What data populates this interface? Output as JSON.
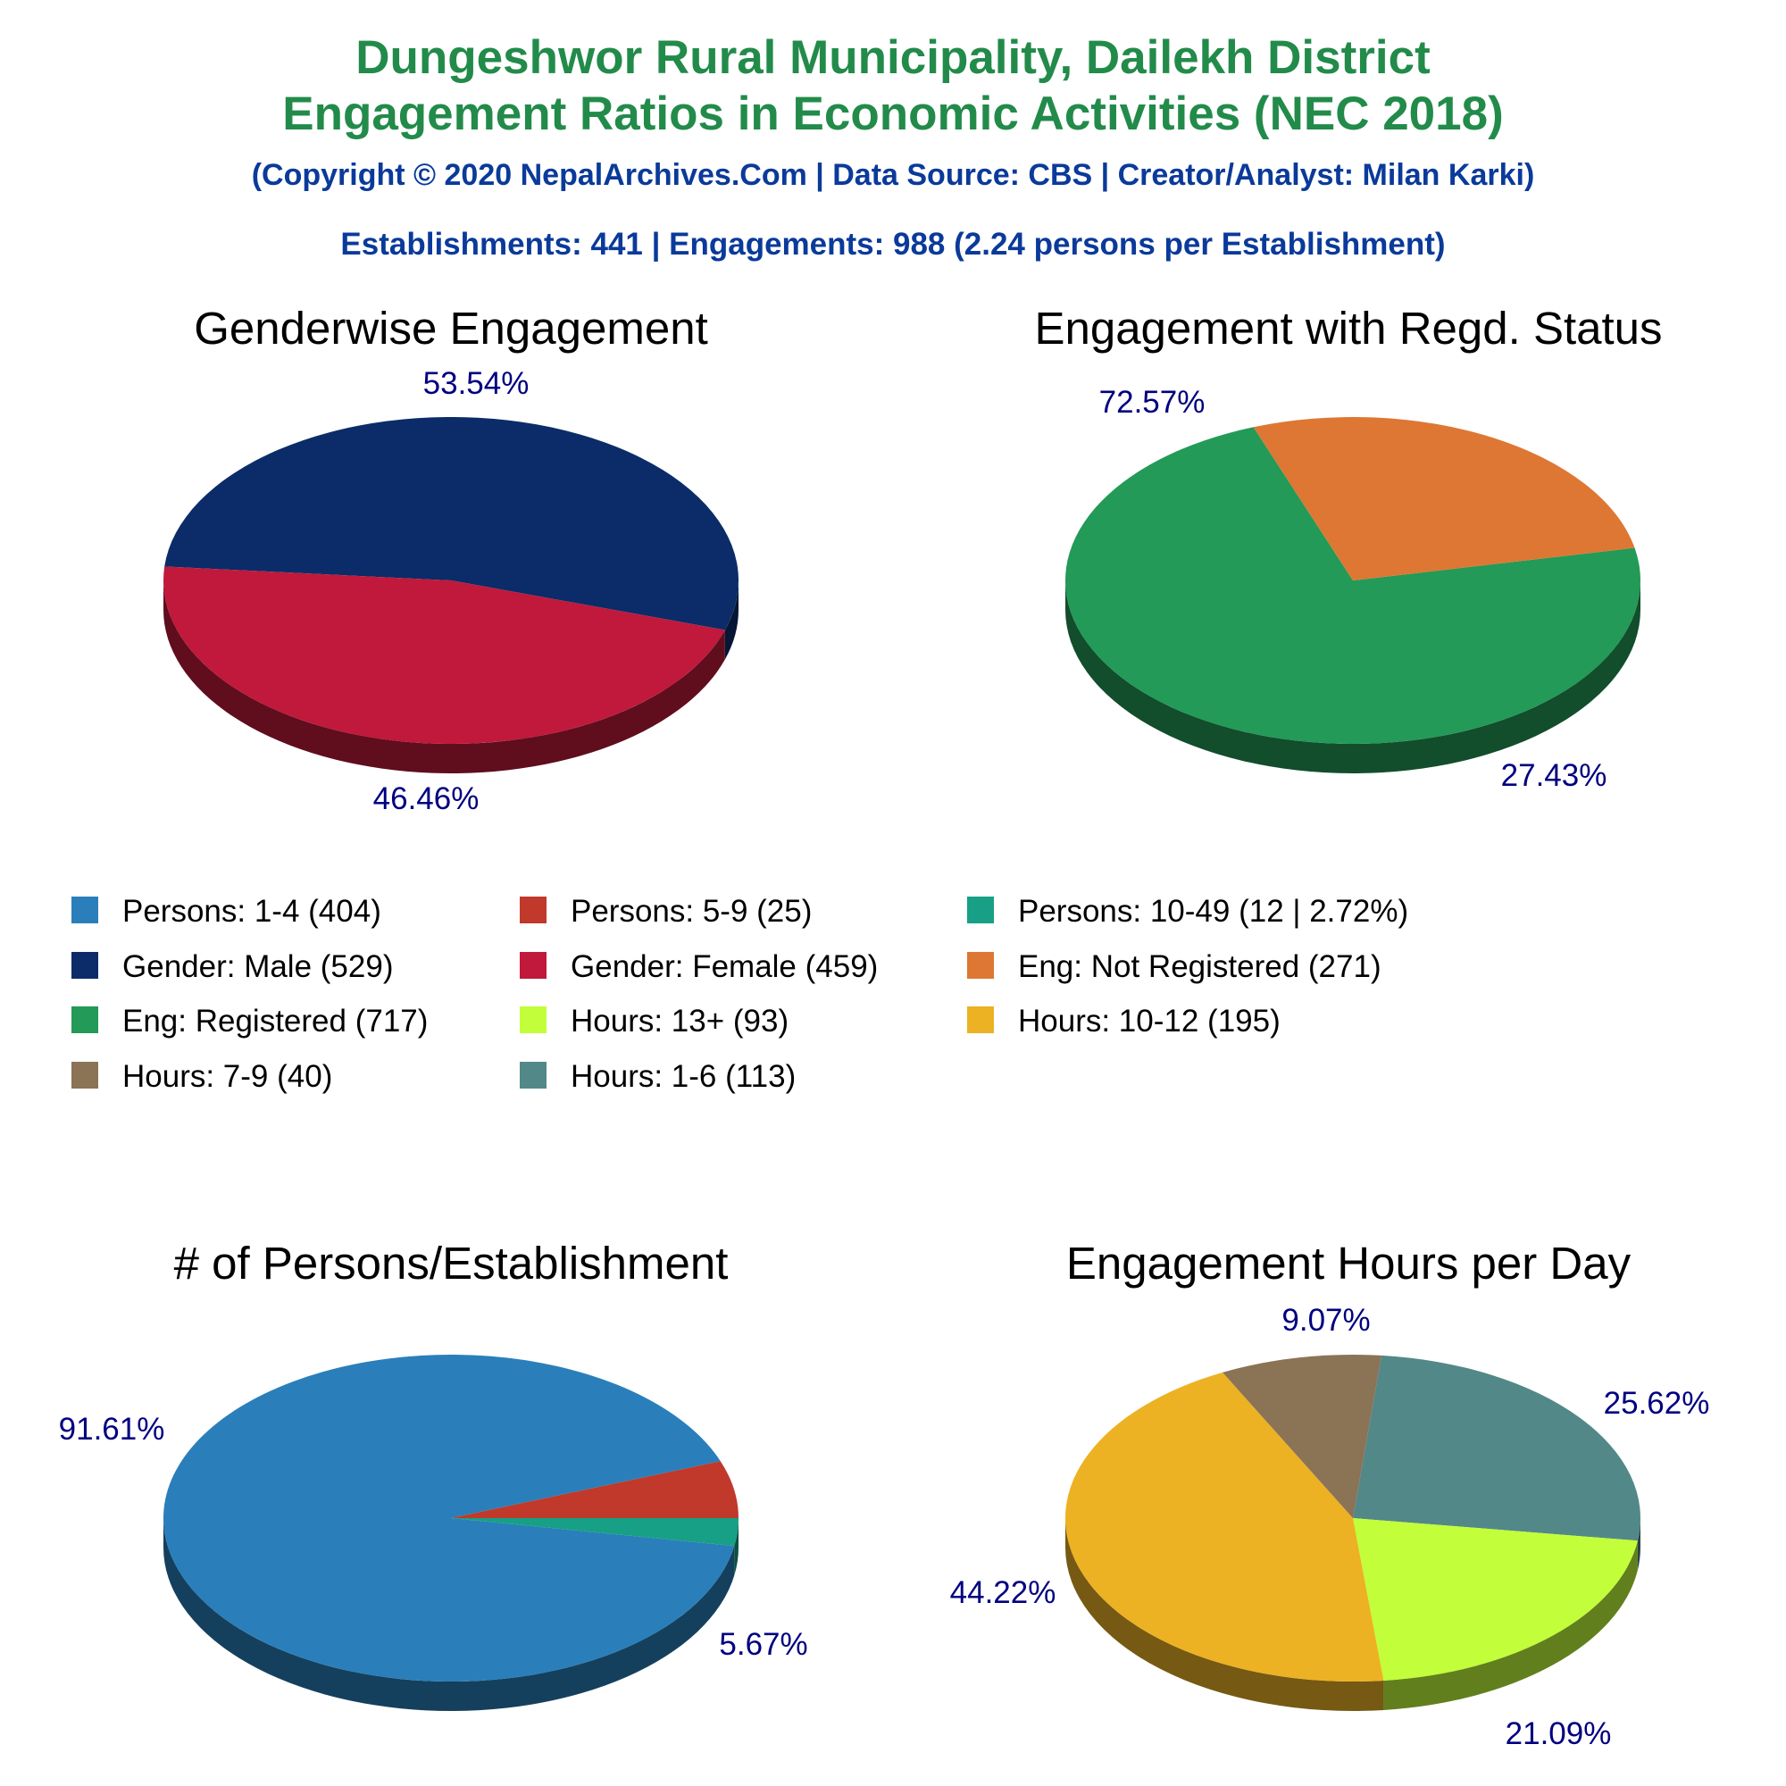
{
  "header": {
    "title_line1": "Dungeshwor Rural Municipality, Dailekh District",
    "title_line2": "Engagement Ratios in Economic Activities (NEC 2018)",
    "subtitle": "(Copyright © 2020 NepalArchives.Com | Data Source: CBS | Creator/Analyst: Milan Karki)",
    "stats": "Establishments: 441 | Engagements: 988 (2.24 persons per Establishment)"
  },
  "legend": [
    {
      "label": "Persons: 1-4 (404)",
      "color": "#2a7fba"
    },
    {
      "label": "Persons: 5-9 (25)",
      "color": "#c0392b"
    },
    {
      "label": "Persons: 10-49 (12 | 2.72%)",
      "color": "#17a085"
    },
    {
      "label": "Gender: Male (529)",
      "color": "#0b2c68"
    },
    {
      "label": "Gender: Female (459)",
      "color": "#c0193b"
    },
    {
      "label": "Eng: Not Registered (271)",
      "color": "#dd7733"
    },
    {
      "label": "Eng: Registered (717)",
      "color": "#239a57"
    },
    {
      "label": "Hours: 13+ (93)",
      "color": "#c2ff3a"
    },
    {
      "label": "Hours: 10-12 (195)",
      "color": "#ecb223"
    },
    {
      "label": "Hours: 7-9 (40)",
      "color": "#8b7355"
    },
    {
      "label": "Hours: 1-6 (113)",
      "color": "#538888"
    }
  ],
  "chart_data": [
    {
      "type": "pie",
      "title": "Genderwise Engagement",
      "slices": [
        {
          "name": "Gender: Male",
          "value": 529,
          "pct_label": "53.54%",
          "color": "#0b2c68"
        },
        {
          "name": "Gender: Female",
          "value": 459,
          "pct_label": "46.46%",
          "color": "#c0193b"
        }
      ]
    },
    {
      "type": "pie",
      "title": "Engagement with Regd. Status",
      "slices": [
        {
          "name": "Eng: Registered",
          "value": 717,
          "pct_label": "72.57%",
          "color": "#239a57"
        },
        {
          "name": "Eng: Not Registered",
          "value": 271,
          "pct_label": "27.43%",
          "color": "#dd7733"
        }
      ]
    },
    {
      "type": "pie",
      "title": "# of Persons/Establishment",
      "slices": [
        {
          "name": "Persons: 1-4",
          "value": 404,
          "pct_label": "91.61%",
          "color": "#2a7fba"
        },
        {
          "name": "Persons: 5-9",
          "value": 25,
          "pct_label": "5.67%",
          "color": "#c0392b"
        },
        {
          "name": "Persons: 10-49",
          "value": 12,
          "pct_label": "",
          "color": "#17a085"
        }
      ]
    },
    {
      "type": "pie",
      "title": "Engagement Hours per Day",
      "slices": [
        {
          "name": "Hours: 1-6",
          "value": 113,
          "pct_label": "25.62%",
          "color": "#538888"
        },
        {
          "name": "Hours: 13+",
          "value": 93,
          "pct_label": "21.09%",
          "color": "#c2ff3a"
        },
        {
          "name": "Hours: 10-12",
          "value": 195,
          "pct_label": "44.22%",
          "color": "#ecb223"
        },
        {
          "name": "Hours: 7-9",
          "value": 40,
          "pct_label": "9.07%",
          "color": "#8b7355"
        }
      ]
    }
  ]
}
